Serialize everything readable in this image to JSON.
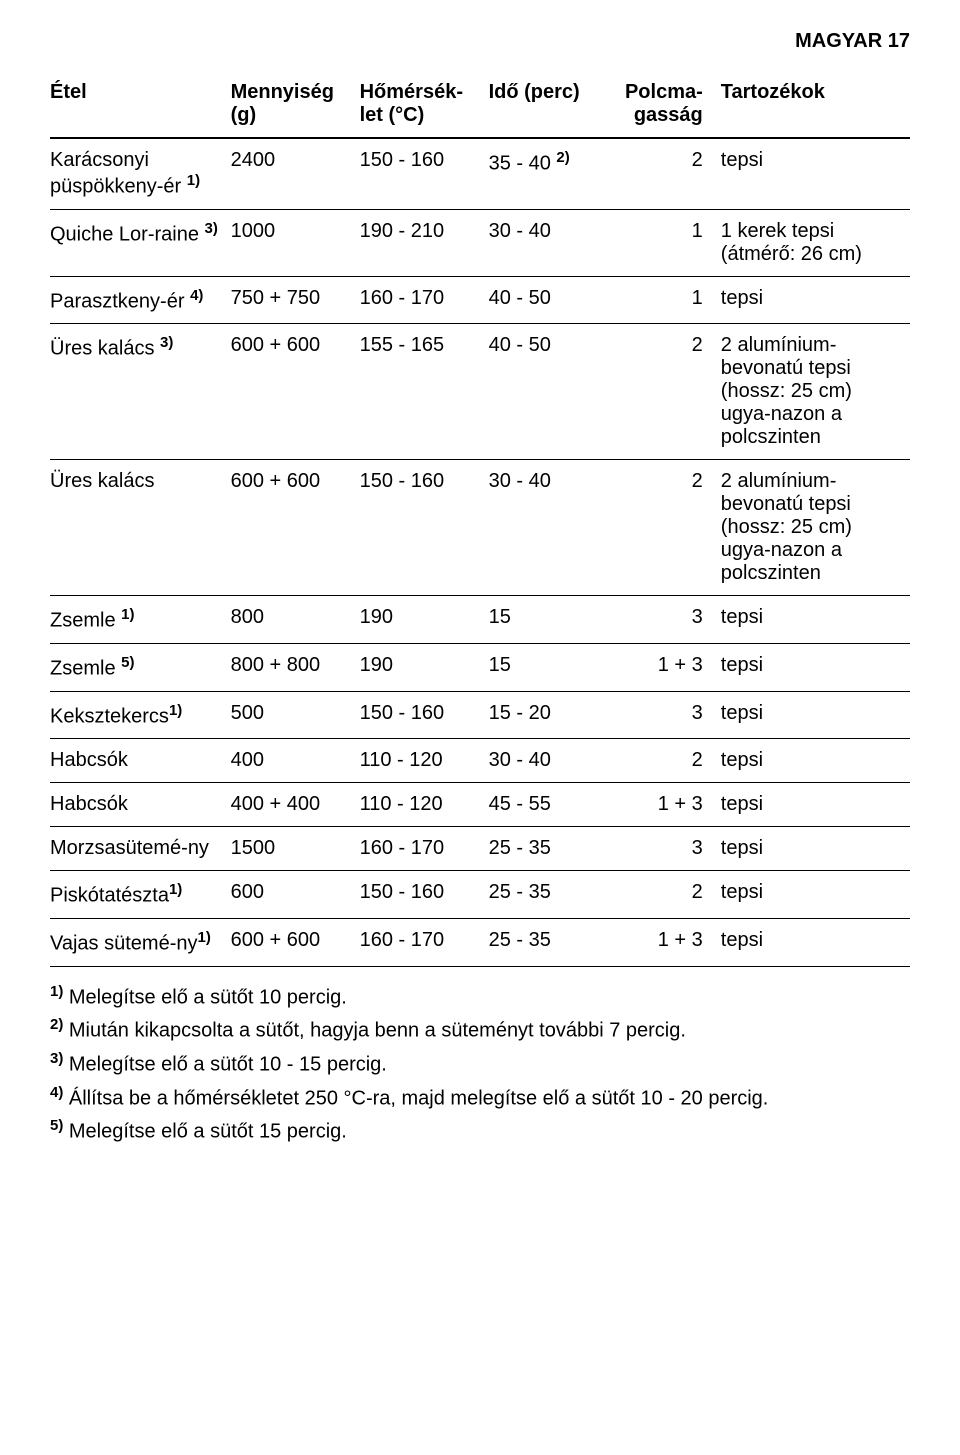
{
  "header": {
    "text": "MAGYAR    17"
  },
  "table": {
    "columns": {
      "food": "Étel",
      "qty": "Mennyiség (g)",
      "temp": "Hőmérsék-let (°C)",
      "time": "Idő (perc)",
      "shelf": "Polcma-gasság",
      "acc": "Tartozékok"
    },
    "rows": [
      {
        "food": "Karácsonyi püspökkeny-ér ",
        "food_sup": "1)",
        "qty": "2400",
        "temp": "150 - 160",
        "time_pre": "35 - 40 ",
        "time_sup": "2)",
        "shelf": "2",
        "acc": "tepsi"
      },
      {
        "food": "Quiche Lor-raine ",
        "food_sup": "3)",
        "qty": "1000",
        "temp": "190 - 210",
        "time": "30 - 40",
        "shelf": "1",
        "acc": "1 kerek tepsi (átmérő: 26 cm)"
      },
      {
        "food": "Parasztkeny-ér ",
        "food_sup": "4)",
        "qty": "750 + 750",
        "temp": "160 - 170",
        "time": "40 - 50",
        "shelf": "1",
        "acc": "tepsi"
      },
      {
        "food": "Üres kalács ",
        "food_sup": "3)",
        "qty": "600 + 600",
        "temp": "155 - 165",
        "time": "40 - 50",
        "shelf": "2",
        "acc": "2 alumínium-bevonatú tepsi (hossz: 25 cm) ugya-nazon a polcszinten"
      },
      {
        "food": "Üres kalács",
        "food_sup": "",
        "qty": "600 + 600",
        "temp": "150 - 160",
        "time": "30 - 40",
        "shelf": "2",
        "acc": "2 alumínium-bevonatú tepsi (hossz: 25 cm) ugya-nazon a polcszinten"
      },
      {
        "food": "Zsemle ",
        "food_sup": "1)",
        "qty": "800",
        "temp": "190",
        "time": "15",
        "shelf": "3",
        "acc": "tepsi"
      },
      {
        "food": "Zsemle ",
        "food_sup": "5)",
        "qty": "800 + 800",
        "temp": "190",
        "time": "15",
        "shelf": "1 + 3",
        "acc": "tepsi"
      },
      {
        "food": "Keksztekercs",
        "food_sup": "1)",
        "qty": "500",
        "temp": "150 - 160",
        "time": "15 - 20",
        "shelf": "3",
        "acc": "tepsi"
      },
      {
        "food": "Habcsók",
        "food_sup": "",
        "qty": "400",
        "temp": "110 - 120",
        "time": "30 - 40",
        "shelf": "2",
        "acc": "tepsi"
      },
      {
        "food": "Habcsók",
        "food_sup": "",
        "qty": "400 + 400",
        "temp": "110 - 120",
        "time": "45 - 55",
        "shelf": "1 + 3",
        "acc": "tepsi"
      },
      {
        "food": "Morzsasütemé-ny",
        "food_sup": "",
        "qty": "1500",
        "temp": "160 - 170",
        "time": "25 - 35",
        "shelf": "3",
        "acc": "tepsi"
      },
      {
        "food": "Piskótatészta",
        "food_sup": "1)",
        "qty": "600",
        "temp": "150 - 160",
        "time": "25 - 35",
        "shelf": "2",
        "acc": "tepsi"
      },
      {
        "food": "Vajas sütemé-ny",
        "food_sup": "1)",
        "qty": "600 + 600",
        "temp": "160 - 170",
        "time": "25 - 35",
        "shelf": "1 + 3",
        "acc": "tepsi"
      }
    ]
  },
  "footnotes": {
    "n1": {
      "num": "1)",
      "text": " Melegítse elő a sütőt 10 percig."
    },
    "n2": {
      "num": "2)",
      "text": " Miután kikapcsolta a sütőt, hagyja benn a süteményt további 7 percig."
    },
    "n3": {
      "num": "3)",
      "text": " Melegítse elő a sütőt 10 - 15 percig."
    },
    "n4": {
      "num": "4)",
      "text": " Állítsa be a hőmérsékletet 250 °C-ra, majd melegítse elő a sütőt 10 - 20 percig."
    },
    "n5": {
      "num": "5)",
      "text": " Melegítse elő a sütőt 15 percig."
    }
  }
}
